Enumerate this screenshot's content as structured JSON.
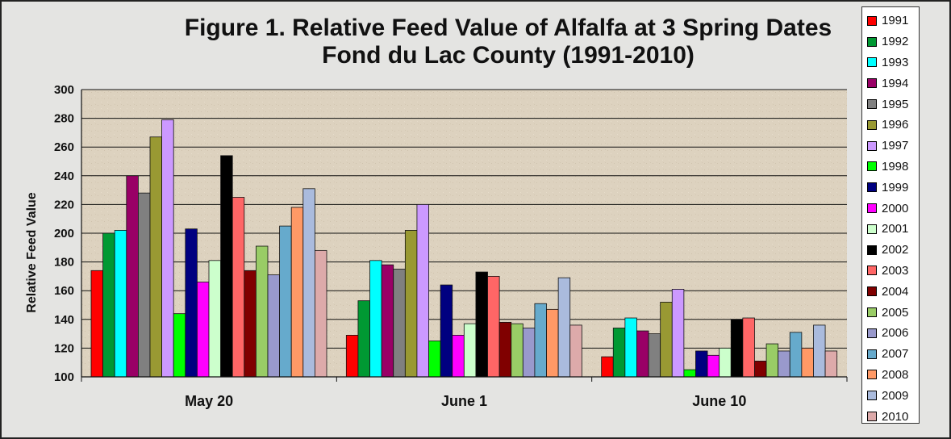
{
  "chart_data": {
    "type": "bar",
    "title_line1": "Figure 1.  Relative Feed Value of Alfalfa at 3 Spring Dates",
    "title_line2": "Fond du Lac County (1991-2010)",
    "ylabel": "Relative Feed Value",
    "xlabel": "",
    "ylim": [
      100,
      300
    ],
    "yticks": [
      "100",
      "120",
      "140",
      "160",
      "180",
      "200",
      "220",
      "240",
      "260",
      "280",
      "300"
    ],
    "grid": true,
    "legend_position": "right",
    "categories": [
      "May 20",
      "June 1",
      "June 10"
    ],
    "series": [
      {
        "name": "1991",
        "color": "#ff0000",
        "values": [
          174,
          129,
          114
        ]
      },
      {
        "name": "1992",
        "color": "#009933",
        "values": [
          200,
          153,
          134
        ]
      },
      {
        "name": "1993",
        "color": "#00ffff",
        "values": [
          202,
          181,
          141
        ]
      },
      {
        "name": "1994",
        "color": "#990066",
        "values": [
          240,
          178,
          132
        ]
      },
      {
        "name": "1995",
        "color": "#808080",
        "values": [
          228,
          175,
          130
        ]
      },
      {
        "name": "1996",
        "color": "#999933",
        "values": [
          267,
          202,
          152
        ]
      },
      {
        "name": "1997",
        "color": "#cc99ff",
        "values": [
          279,
          220,
          161
        ]
      },
      {
        "name": "1998",
        "color": "#00ff00",
        "values": [
          144,
          125,
          105
        ]
      },
      {
        "name": "1999",
        "color": "#000080",
        "values": [
          203,
          164,
          118
        ]
      },
      {
        "name": "2000",
        "color": "#ff00ff",
        "values": [
          166,
          129,
          115
        ]
      },
      {
        "name": "2001",
        "color": "#ccffcc",
        "values": [
          181,
          137,
          120
        ]
      },
      {
        "name": "2002",
        "color": "#000000",
        "values": [
          254,
          173,
          140
        ]
      },
      {
        "name": "2003",
        "color": "#ff6666",
        "values": [
          225,
          170,
          141
        ]
      },
      {
        "name": "2004",
        "color": "#800000",
        "values": [
          174,
          138,
          111
        ]
      },
      {
        "name": "2005",
        "color": "#99cc66",
        "values": [
          191,
          137,
          123
        ]
      },
      {
        "name": "2006",
        "color": "#9999cc",
        "values": [
          171,
          134,
          118
        ]
      },
      {
        "name": "2007",
        "color": "#66aacc",
        "values": [
          205,
          151,
          131
        ]
      },
      {
        "name": "2008",
        "color": "#ff9966",
        "values": [
          218,
          147,
          120
        ]
      },
      {
        "name": "2009",
        "color": "#aabbdd",
        "values": [
          231,
          169,
          136
        ]
      },
      {
        "name": "2010",
        "color": "#ddaaaa",
        "values": [
          188,
          136,
          118
        ]
      }
    ]
  }
}
